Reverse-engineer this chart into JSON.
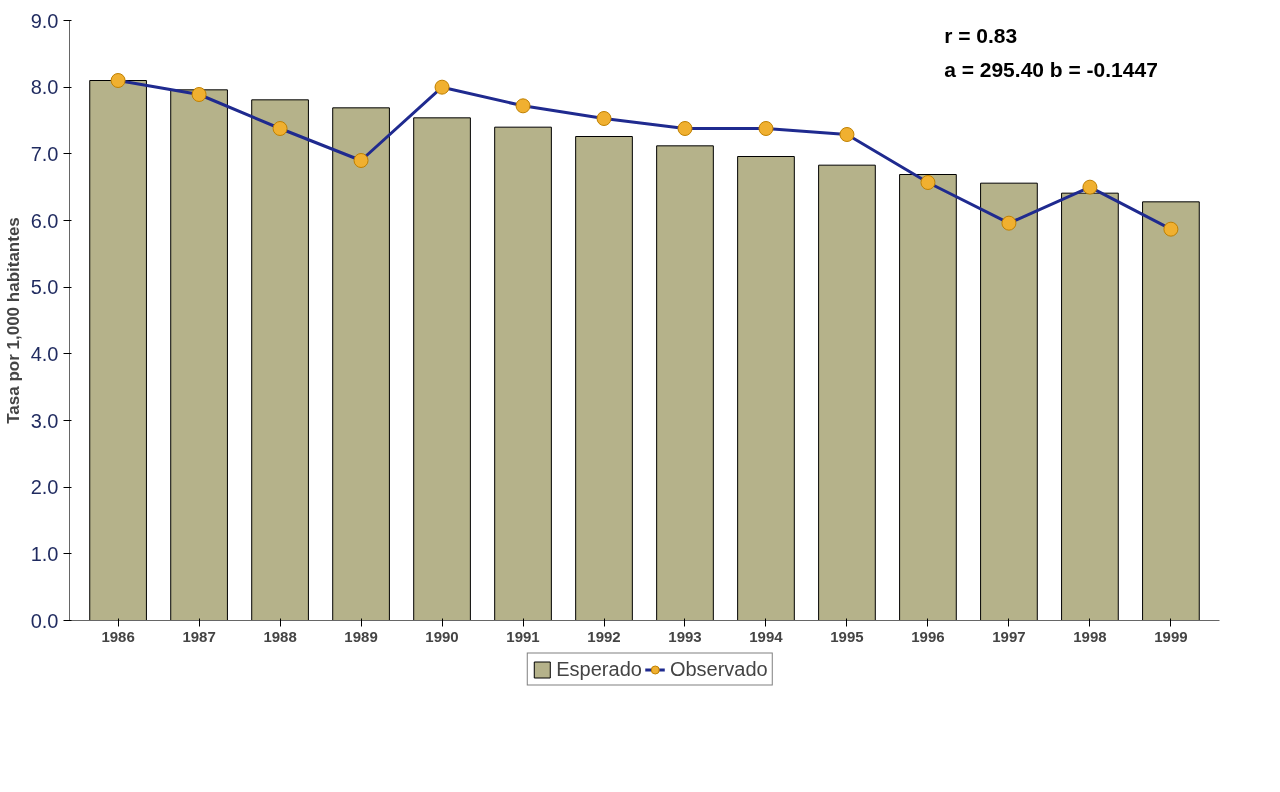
{
  "chart_data": {
    "type": "bar",
    "ylabel": "Tasa por 1,000 habitantes",
    "categories": [
      "1986",
      "1987",
      "1988",
      "1989",
      "1990",
      "1991",
      "1992",
      "1993",
      "1994",
      "1995",
      "1996",
      "1997",
      "1998",
      "1999"
    ],
    "series": [
      {
        "name": "Esperado",
        "color": "#b5b28a",
        "values": [
          8.1,
          7.96,
          7.81,
          7.69,
          7.54,
          7.4,
          7.26,
          7.12,
          6.96,
          6.83,
          6.69,
          6.56,
          6.41,
          6.28
        ]
      },
      {
        "name": "Observado",
        "type": "line",
        "color": "#1f2a8f",
        "colors": [
          "#f0b030",
          "#f0b030",
          "#f0b030",
          "#f0b030",
          "#f0b030",
          "#f0b030",
          "#f0b030",
          "#f0b030",
          "#f0b030",
          "#f0b030",
          "#f0b030",
          "#f0b030",
          "#f0b030",
          "#f0b030"
        ],
        "values": [
          8.1,
          7.89,
          7.38,
          6.9,
          8.0,
          7.72,
          7.53,
          7.38,
          7.38,
          7.29,
          6.57,
          5.96,
          6.5,
          5.87
        ]
      }
    ],
    "ylim": [
      0,
      9
    ],
    "yticks": [
      {
        "value": 0,
        "label": "0.0"
      },
      {
        "value": 1,
        "label": "1.0"
      },
      {
        "value": 2,
        "label": "2.0"
      },
      {
        "value": 3,
        "label": "3.0"
      },
      {
        "value": 4,
        "label": "4.0"
      },
      {
        "value": 5,
        "label": "5.0"
      },
      {
        "value": 6,
        "label": "6.0"
      },
      {
        "value": 7,
        "label": "7.0"
      },
      {
        "value": 8,
        "label": "8.0"
      },
      {
        "value": 9,
        "label": "9.0"
      }
    ],
    "annotations": [
      "r =  0.83",
      "a = 295.40  b = -0.1447"
    ],
    "grid": false,
    "legend": "bottom",
    "marker": "circle"
  }
}
